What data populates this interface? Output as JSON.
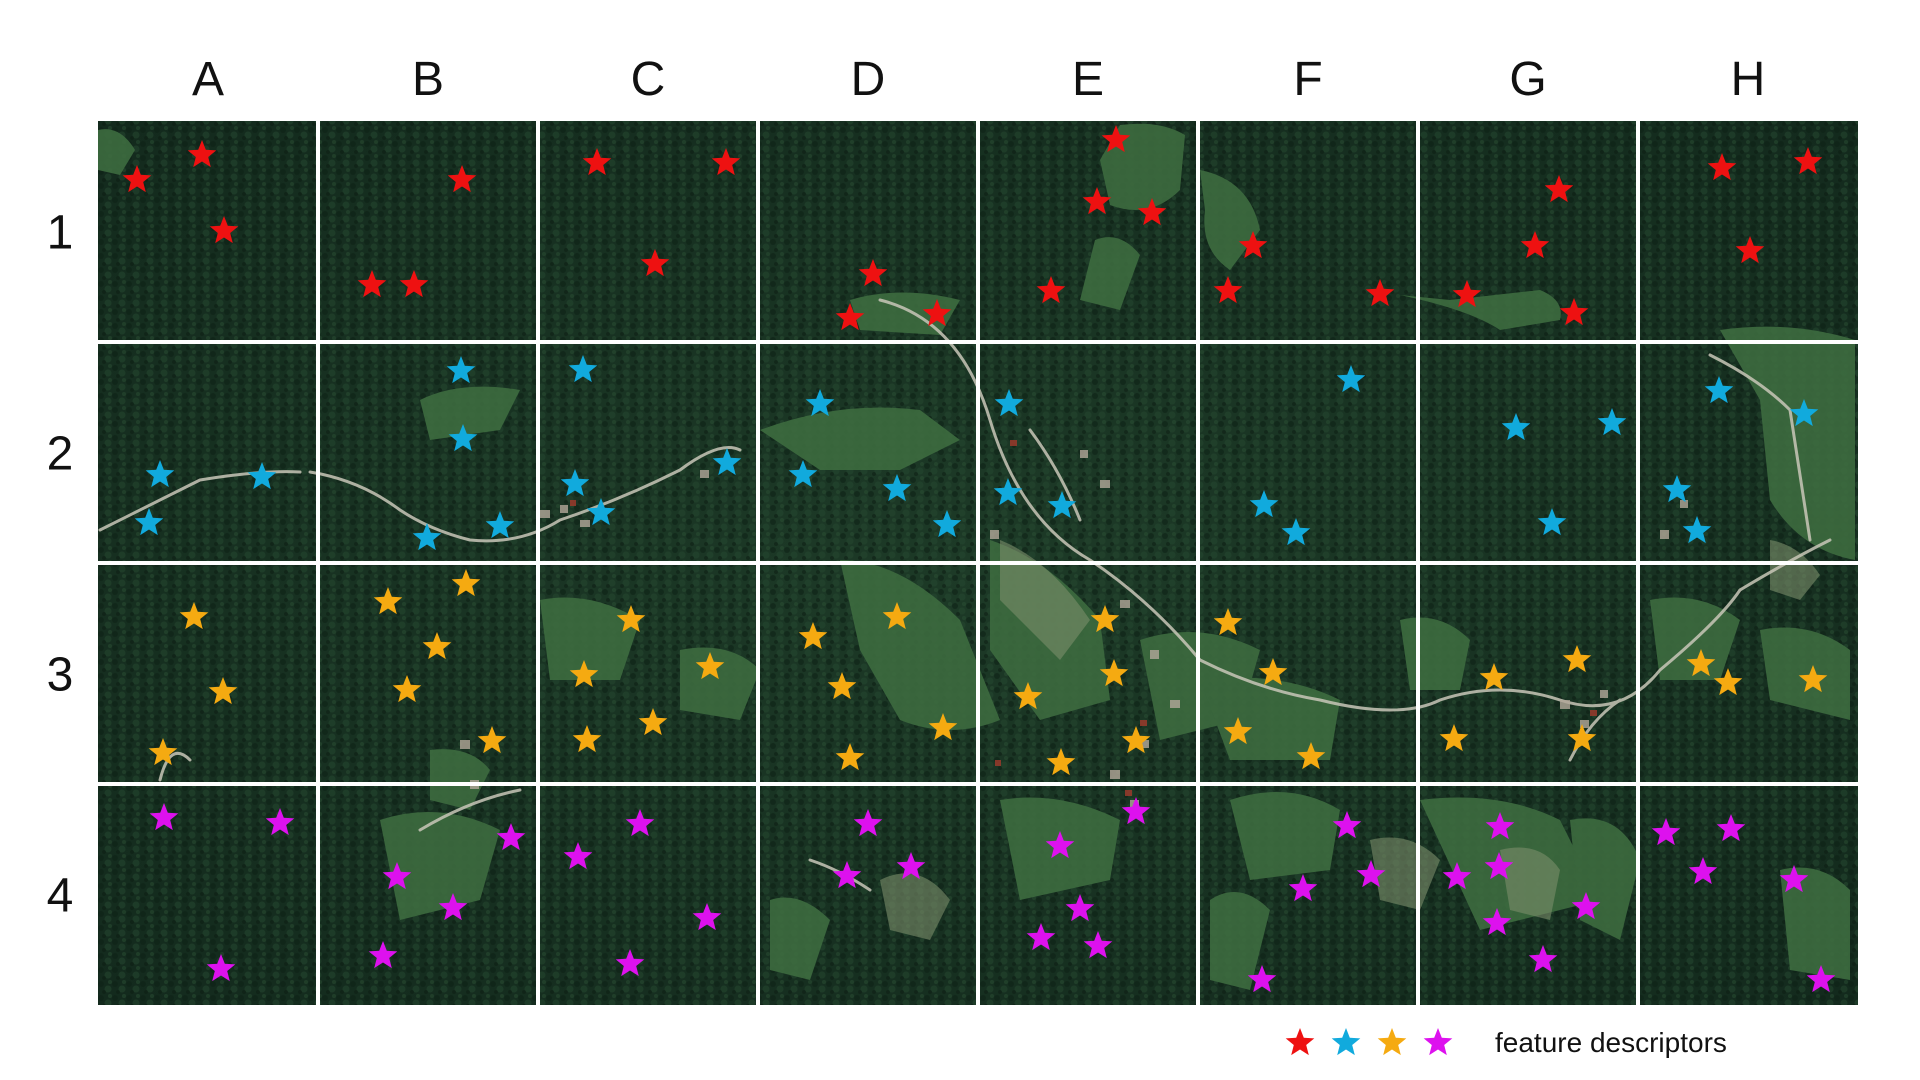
{
  "columns": [
    "A",
    "B",
    "C",
    "D",
    "E",
    "F",
    "G",
    "H"
  ],
  "rows": [
    "1",
    "2",
    "3",
    "4"
  ],
  "row_colors": {
    "1": "#ee1111",
    "2": "#11aadd",
    "3": "#f5aa11",
    "4": "#dd11ee"
  },
  "image_type": "aerial satellite imagery of forested hills with meadows, roads and a village",
  "legend": {
    "colors": [
      "#ee1111",
      "#11aadd",
      "#f5aa11",
      "#dd11ee"
    ],
    "marker": "star-icon",
    "text": "feature descriptors"
  }
}
